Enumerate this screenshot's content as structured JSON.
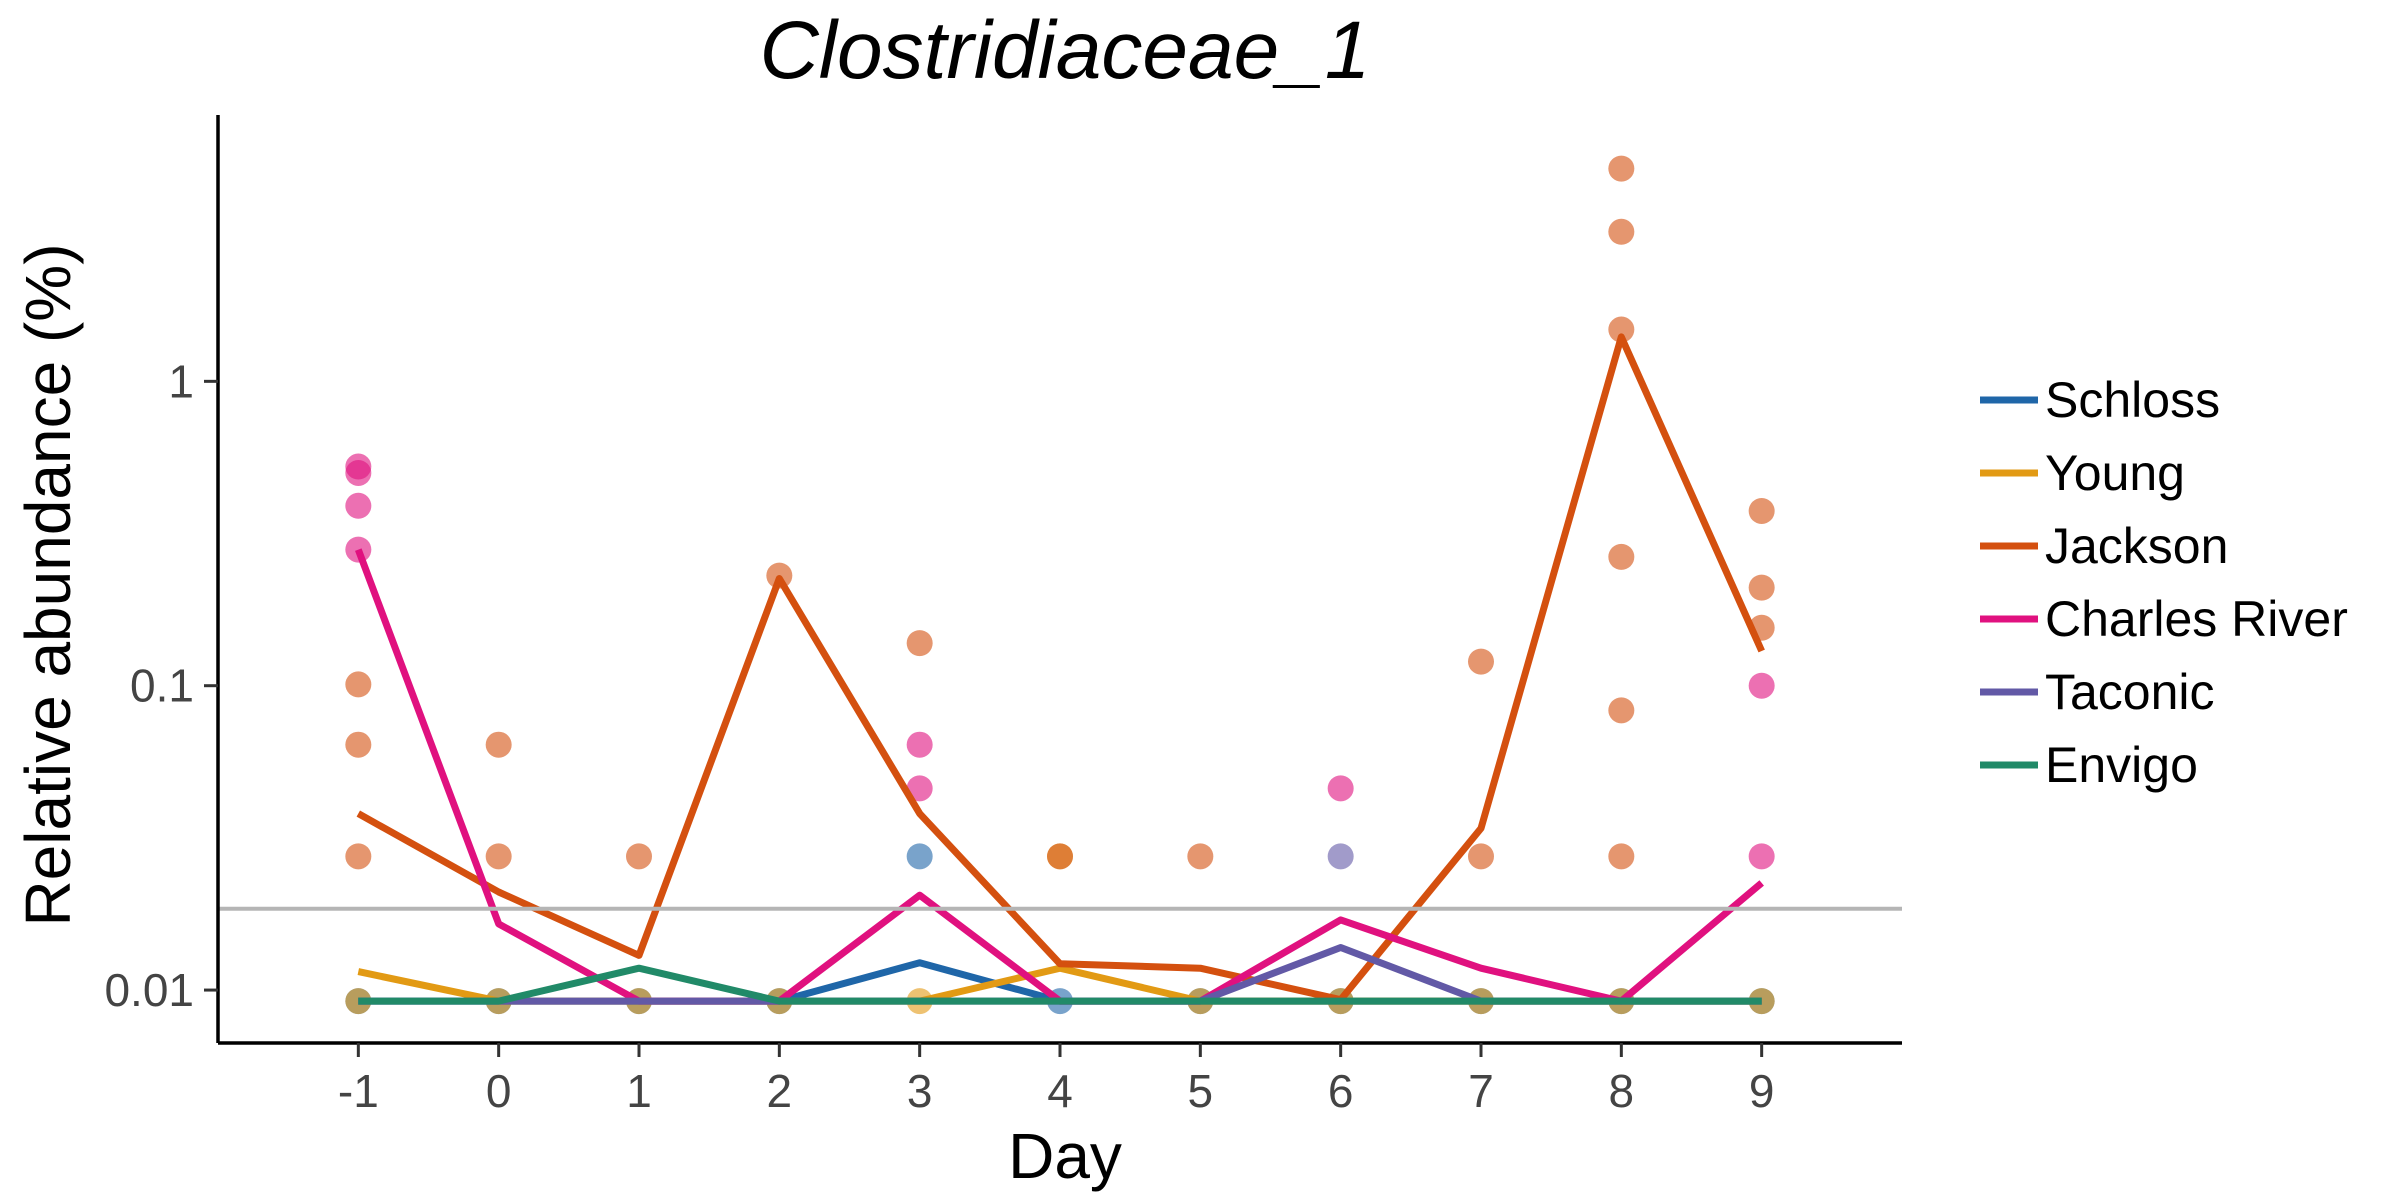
{
  "chart_data": {
    "type": "line",
    "title": "Clostridiaceae_1",
    "xlabel": "Day",
    "ylabel": "Relative abundance (%)",
    "y_scale": "log10",
    "xlim": [
      -2,
      10
    ],
    "ylim": [
      0.0067,
      7.5
    ],
    "x_ticks": [
      -1,
      0,
      1,
      2,
      3,
      4,
      5,
      6,
      7,
      8,
      9
    ],
    "x_tick_labels": [
      "-1",
      "0",
      "1",
      "2",
      "3",
      "4",
      "5",
      "6",
      "7",
      "8",
      "9"
    ],
    "y_ticks": [
      0.01,
      0.1,
      1
    ],
    "y_tick_labels": [
      "0.01",
      "0.1",
      "1"
    ],
    "detection_limit": 0.0185,
    "legend_position": "right",
    "series": [
      {
        "name": "Schloss",
        "color": "#1f66a8",
        "x": [
          -1,
          0,
          1,
          2,
          3,
          4,
          5,
          6,
          7,
          8,
          9
        ],
        "y": [
          0.0092,
          0.0092,
          0.0092,
          0.0092,
          0.0123,
          0.0092,
          0.0092,
          0.0092,
          0.0092,
          0.0092,
          0.0092
        ],
        "points": [
          [
            -1,
            0.0092
          ],
          [
            0,
            0.0092
          ],
          [
            1,
            0.0092
          ],
          [
            2,
            0.0092
          ],
          [
            3,
            0.0275
          ],
          [
            4,
            0.0092
          ],
          [
            5,
            0.0092
          ],
          [
            6,
            0.0092
          ],
          [
            7,
            0.0092
          ],
          [
            8,
            0.0092
          ],
          [
            9,
            0.0092
          ]
        ]
      },
      {
        "name": "Young",
        "color": "#e29a14",
        "x": [
          -1,
          0,
          1,
          2,
          3,
          4,
          5,
          6,
          7,
          8,
          9
        ],
        "y": [
          0.0115,
          0.0092,
          0.0092,
          0.0092,
          0.0092,
          0.0118,
          0.0092,
          0.0092,
          0.0092,
          0.0092,
          0.0092
        ],
        "points": [
          [
            -1,
            0.0092
          ],
          [
            0,
            0.0092
          ],
          [
            1,
            0.0092
          ],
          [
            2,
            0.0092
          ],
          [
            3,
            0.0092
          ],
          [
            4,
            0.0275
          ],
          [
            5,
            0.0092
          ],
          [
            6,
            0.0092
          ],
          [
            7,
            0.0092
          ],
          [
            8,
            0.0092
          ],
          [
            9,
            0.0092
          ]
        ]
      },
      {
        "name": "Jackson",
        "color": "#d4500f",
        "x": [
          -1,
          0,
          1,
          2,
          3,
          4,
          5,
          6,
          7,
          8,
          9
        ],
        "y": [
          0.038,
          0.021,
          0.013,
          0.225,
          0.038,
          0.0122,
          0.0118,
          0.0093,
          0.034,
          1.4,
          0.13
        ],
        "points": [
          [
            -1,
            0.0275
          ],
          [
            -1,
            0.064
          ],
          [
            -1,
            0.101
          ],
          [
            0,
            0.0275
          ],
          [
            0,
            0.064
          ],
          [
            1,
            0.0275
          ],
          [
            2,
            0.23
          ],
          [
            3,
            0.138
          ],
          [
            4,
            0.0275
          ],
          [
            5,
            0.0275
          ],
          [
            7,
            0.0275
          ],
          [
            7,
            0.12
          ],
          [
            8,
            0.0275
          ],
          [
            8,
            0.083
          ],
          [
            8,
            0.265
          ],
          [
            8,
            1.48
          ],
          [
            8,
            3.1
          ],
          [
            8,
            5.0
          ],
          [
            9,
            0.155
          ],
          [
            9,
            0.21
          ],
          [
            9,
            0.375
          ]
        ]
      },
      {
        "name": "Charles River",
        "color": "#e0117f",
        "x": [
          -1,
          0,
          1,
          2,
          3,
          4,
          5,
          6,
          7,
          8,
          9
        ],
        "y": [
          0.28,
          0.0165,
          0.0092,
          0.0092,
          0.0205,
          0.0092,
          0.0092,
          0.017,
          0.0118,
          0.0092,
          0.0225
        ],
        "points": [
          [
            -1,
            0.28
          ],
          [
            -1,
            0.39
          ],
          [
            -1,
            0.5
          ],
          [
            -1,
            0.525
          ],
          [
            3,
            0.046
          ],
          [
            3,
            0.064
          ],
          [
            6,
            0.046
          ],
          [
            9,
            0.0275
          ],
          [
            9,
            0.1
          ]
        ]
      },
      {
        "name": "Taconic",
        "color": "#6259a6",
        "x": [
          -1,
          0,
          1,
          2,
          3,
          4,
          5,
          6,
          7,
          8,
          9
        ],
        "y": [
          0.0092,
          0.0092,
          0.0092,
          0.0092,
          0.0092,
          0.0092,
          0.0092,
          0.0138,
          0.0092,
          0.0092,
          0.0092
        ],
        "points": [
          [
            6,
            0.0275
          ]
        ]
      },
      {
        "name": "Envigo",
        "color": "#218a68",
        "x": [
          -1,
          0,
          1,
          2,
          3,
          4,
          5,
          6,
          7,
          8,
          9
        ],
        "y": [
          0.0092,
          0.0092,
          0.0118,
          0.0092,
          0.0092,
          0.0092,
          0.0092,
          0.0092,
          0.0092,
          0.0092,
          0.0092
        ],
        "points": []
      }
    ]
  }
}
